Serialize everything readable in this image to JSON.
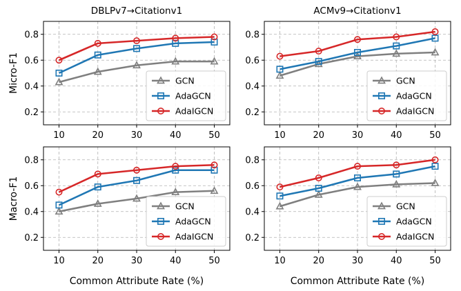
{
  "figure": {
    "ylabel_top": "Micro-F1",
    "ylabel_bottom": "Macro-F1",
    "xlabel": "Common Attribute Rate (%)"
  },
  "chart_data": [
    {
      "type": "line",
      "title": "DBLPv7→Citationv1",
      "ylabel": "Micro-F1",
      "xlabel": "",
      "x": [
        10,
        20,
        30,
        40,
        50
      ],
      "xlim": [
        6,
        54
      ],
      "ylim": [
        0.1,
        0.9
      ],
      "yticks": [
        0.2,
        0.4,
        0.6,
        0.8
      ],
      "grid": true,
      "legend": "lower-right",
      "series": [
        {
          "name": "GCN",
          "marker": "triangle",
          "color": "#7f7f7f",
          "values": [
            0.43,
            0.51,
            0.56,
            0.59,
            0.59
          ]
        },
        {
          "name": "AdaGCN",
          "marker": "square",
          "color": "#1f77b4",
          "values": [
            0.5,
            0.64,
            0.69,
            0.73,
            0.74
          ]
        },
        {
          "name": "AdaIGCN",
          "marker": "circle",
          "color": "#d62728",
          "values": [
            0.6,
            0.73,
            0.75,
            0.77,
            0.78
          ]
        }
      ]
    },
    {
      "type": "line",
      "title": "ACMv9→Citationv1",
      "ylabel": "",
      "xlabel": "",
      "x": [
        10,
        20,
        30,
        40,
        50
      ],
      "xlim": [
        6,
        54
      ],
      "ylim": [
        0.1,
        0.9
      ],
      "yticks": [
        0.2,
        0.4,
        0.6,
        0.8
      ],
      "grid": true,
      "legend": "lower-right",
      "series": [
        {
          "name": "GCN",
          "marker": "triangle",
          "color": "#7f7f7f",
          "values": [
            0.48,
            0.57,
            0.63,
            0.65,
            0.66
          ]
        },
        {
          "name": "AdaGCN",
          "marker": "square",
          "color": "#1f77b4",
          "values": [
            0.53,
            0.59,
            0.66,
            0.71,
            0.77
          ]
        },
        {
          "name": "AdaIGCN",
          "marker": "circle",
          "color": "#d62728",
          "values": [
            0.63,
            0.67,
            0.76,
            0.78,
            0.82
          ]
        }
      ]
    },
    {
      "type": "line",
      "title": "",
      "ylabel": "Macro-F1",
      "xlabel": "Common Attribute Rate (%)",
      "x": [
        10,
        20,
        30,
        40,
        50
      ],
      "xlim": [
        6,
        54
      ],
      "ylim": [
        0.1,
        0.9
      ],
      "yticks": [
        0.2,
        0.4,
        0.6,
        0.8
      ],
      "grid": true,
      "legend": "lower-right",
      "series": [
        {
          "name": "GCN",
          "marker": "triangle",
          "color": "#7f7f7f",
          "values": [
            0.4,
            0.46,
            0.5,
            0.55,
            0.56
          ]
        },
        {
          "name": "AdaGCN",
          "marker": "square",
          "color": "#1f77b4",
          "values": [
            0.45,
            0.59,
            0.64,
            0.72,
            0.72
          ]
        },
        {
          "name": "AdaIGCN",
          "marker": "circle",
          "color": "#d62728",
          "values": [
            0.55,
            0.69,
            0.72,
            0.75,
            0.76
          ]
        }
      ]
    },
    {
      "type": "line",
      "title": "",
      "ylabel": "",
      "xlabel": "Common Attribute Rate (%)",
      "x": [
        10,
        20,
        30,
        40,
        50
      ],
      "xlim": [
        6,
        54
      ],
      "ylim": [
        0.1,
        0.9
      ],
      "yticks": [
        0.2,
        0.4,
        0.6,
        0.8
      ],
      "grid": true,
      "legend": "lower-right",
      "series": [
        {
          "name": "GCN",
          "marker": "triangle",
          "color": "#7f7f7f",
          "values": [
            0.44,
            0.53,
            0.59,
            0.61,
            0.62
          ]
        },
        {
          "name": "AdaGCN",
          "marker": "square",
          "color": "#1f77b4",
          "values": [
            0.52,
            0.58,
            0.66,
            0.69,
            0.75
          ]
        },
        {
          "name": "AdaIGCN",
          "marker": "circle",
          "color": "#d62728",
          "values": [
            0.59,
            0.66,
            0.75,
            0.76,
            0.8
          ]
        }
      ]
    }
  ]
}
